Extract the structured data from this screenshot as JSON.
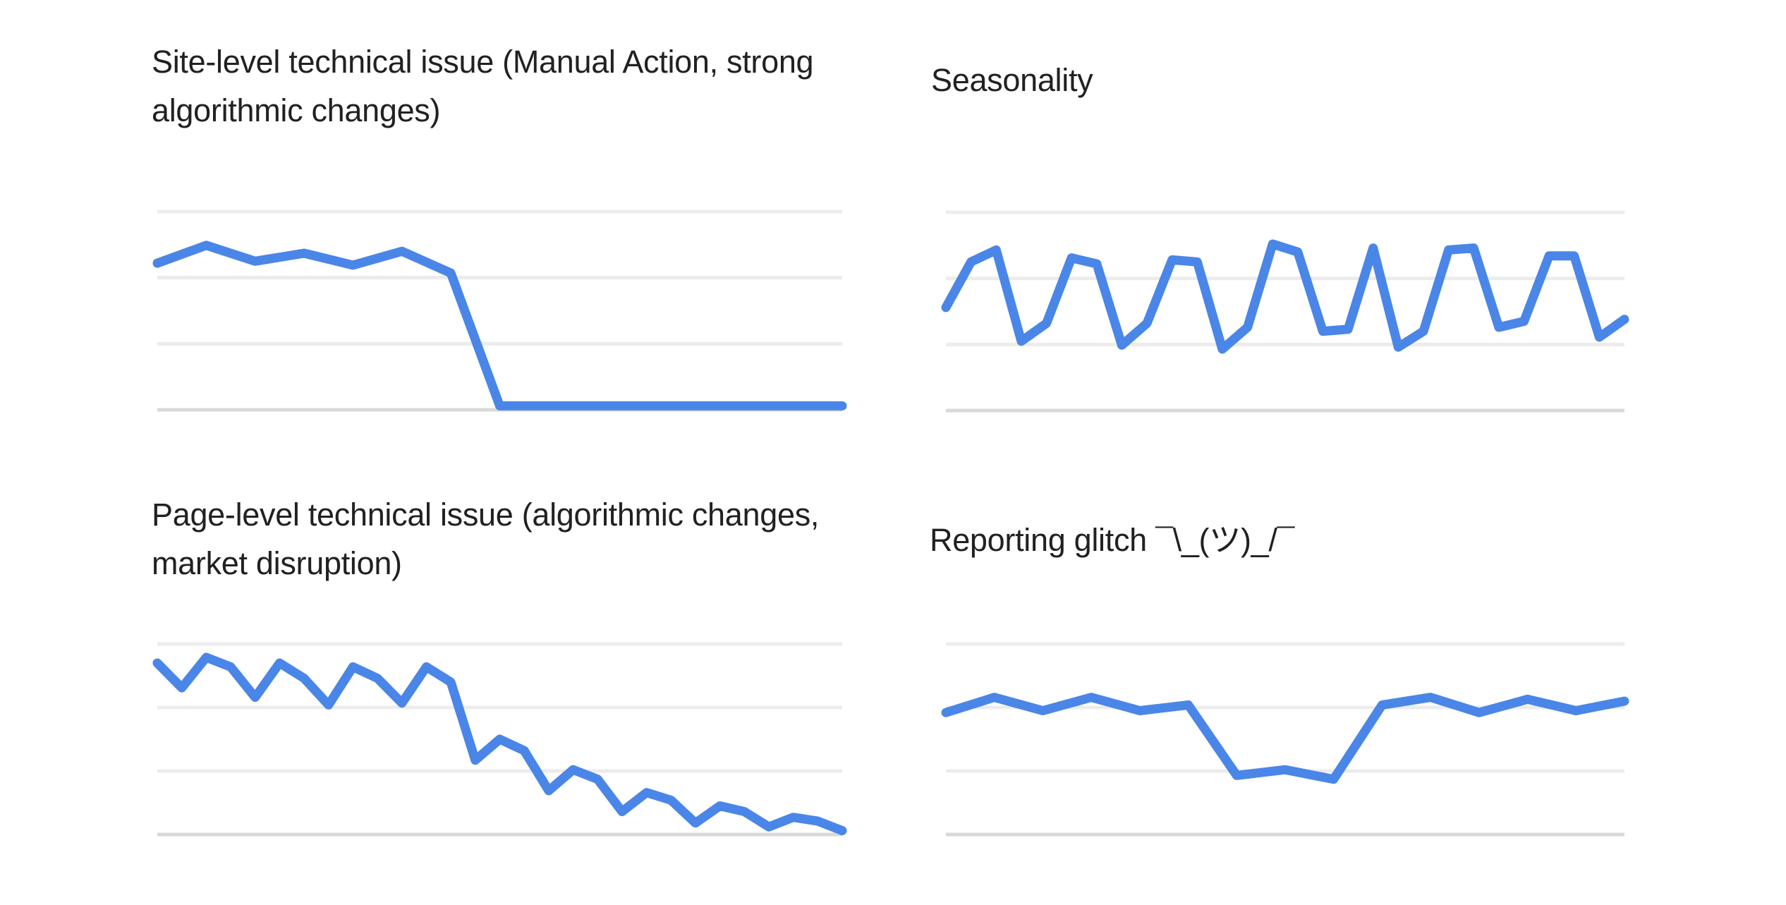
{
  "page": {
    "background_color": "#ffffff",
    "description_note": "Four small multiple line charts in a 2x2 grid, no axes labels, horizontal gridlines only"
  },
  "style": {
    "line_color": "#4a86e8",
    "gridline_color": "#ececec",
    "baseline_color": "#d9d9d9",
    "title_color": "#212121"
  },
  "chart_data": [
    {
      "type": "line",
      "title": "Site-level technical issue (Manual Action, strong algorithmic changes)",
      "title_lines": [
        "Site-level technical issue (Manual Action, strong",
        "algorithmic changes)"
      ],
      "x": "time index (unlabeled)",
      "values": [
        74,
        83,
        75,
        79,
        73,
        80,
        69,
        2,
        2,
        2,
        2,
        2,
        2,
        2,
        2
      ],
      "ylim": [
        0,
        100
      ],
      "xlabel": "",
      "ylabel": "",
      "grid": "horizontal gridlines x4",
      "legend": "none",
      "axis_tick_labels_visible": false
    },
    {
      "type": "line",
      "title": "Seasonality",
      "title_lines": [
        "Seasonality"
      ],
      "x": "time index (unlabeled)",
      "values": [
        52,
        75,
        81,
        35,
        44,
        77,
        74,
        33,
        44,
        76,
        75,
        31,
        42,
        84,
        80,
        40,
        41,
        82,
        32,
        40,
        81,
        82,
        42,
        45,
        78,
        78,
        37,
        46
      ],
      "ylim": [
        0,
        100
      ],
      "xlabel": "",
      "ylabel": "",
      "grid": "horizontal gridlines x4",
      "legend": "none",
      "axis_tick_labels_visible": false
    },
    {
      "type": "line",
      "title": "Page-level technical issue (algorithmic changes, market disruption)",
      "title_lines": [
        "Page-level technical issue (algorithmic changes,",
        "market disruption)"
      ],
      "x": "time index (unlabeled)",
      "values": [
        90,
        77,
        93,
        88,
        72,
        90,
        82,
        68,
        88,
        82,
        69,
        88,
        80,
        39,
        50,
        44,
        23,
        34,
        29,
        12,
        22,
        18,
        6,
        15,
        12,
        4,
        9,
        7,
        2
      ],
      "ylim": [
        0,
        100
      ],
      "xlabel": "",
      "ylabel": "",
      "grid": "horizontal gridlines x4",
      "legend": "none",
      "axis_tick_labels_visible": false
    },
    {
      "type": "line",
      "title": "Reporting glitch ¯\\_(ツ)_/¯",
      "title_lines": [
        "Reporting glitch ¯\\_(ツ)_/¯"
      ],
      "x": "time index (unlabeled)",
      "values": [
        64,
        72,
        65,
        72,
        65,
        68,
        31,
        34,
        29,
        68,
        72,
        64,
        71,
        65,
        70
      ],
      "ylim": [
        0,
        100
      ],
      "xlabel": "",
      "ylabel": "",
      "grid": "horizontal gridlines x4",
      "legend": "none",
      "axis_tick_labels_visible": false
    }
  ]
}
